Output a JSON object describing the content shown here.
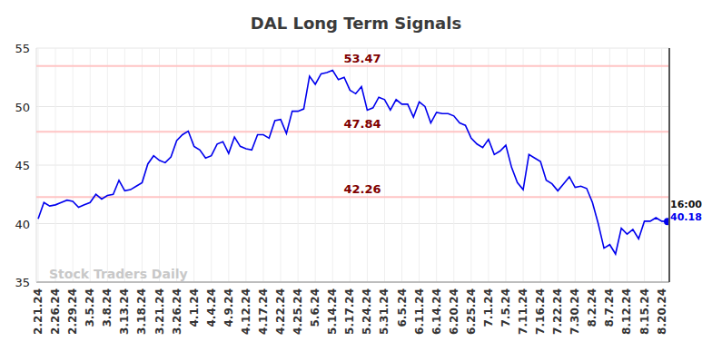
{
  "chart_data": {
    "type": "line",
    "title": "DAL Long Term Signals",
    "categories": [
      "2.21.24",
      null,
      null,
      "2.26.24",
      null,
      null,
      "2.29.24",
      null,
      null,
      "3.5.24",
      null,
      null,
      "3.8.24",
      null,
      null,
      "3.13.24",
      null,
      null,
      "3.18.24",
      null,
      null,
      "3.21.24",
      null,
      null,
      "3.26.24",
      null,
      null,
      "4.1.24",
      null,
      null,
      "4.4.24",
      null,
      null,
      "4.9.24",
      null,
      null,
      "4.12.24",
      null,
      null,
      "4.17.24",
      null,
      null,
      "4.22.24",
      null,
      null,
      "4.25.24",
      null,
      null,
      "5.6.24",
      null,
      null,
      "5.14.24",
      null,
      null,
      "5.17.24",
      null,
      null,
      "5.24.24",
      null,
      null,
      "5.31.24",
      null,
      null,
      "6.5.24",
      null,
      null,
      "6.11.24",
      null,
      null,
      "6.14.24",
      null,
      null,
      "6.20.24",
      null,
      null,
      "6.25.24",
      null,
      null,
      "7.1.24",
      null,
      null,
      "7.5.24",
      null,
      null,
      "7.11.24",
      null,
      null,
      "7.16.24",
      null,
      null,
      "7.22.24",
      null,
      null,
      "7.30.24",
      null,
      null,
      "8.2.24",
      null,
      null,
      "8.7.24",
      null,
      null,
      "8.12.24",
      null,
      null,
      "8.15.24",
      null,
      null,
      "8.20.24",
      null
    ],
    "series": [
      {
        "name": "DAL",
        "color": "#0000ee",
        "values": [
          40.4,
          41.8,
          41.5,
          41.6,
          41.8,
          42.0,
          41.9,
          41.4,
          41.6,
          41.8,
          42.5,
          42.1,
          42.4,
          42.5,
          43.7,
          42.8,
          42.9,
          43.2,
          43.5,
          45.1,
          45.8,
          45.4,
          45.2,
          45.7,
          47.1,
          47.6,
          47.9,
          46.6,
          46.3,
          45.6,
          45.8,
          46.8,
          47.0,
          46.0,
          47.4,
          46.6,
          46.4,
          46.3,
          47.6,
          47.6,
          47.3,
          48.8,
          48.9,
          47.7,
          49.6,
          49.6,
          49.8,
          52.6,
          51.9,
          52.8,
          52.9,
          53.1,
          52.3,
          52.5,
          51.4,
          51.1,
          51.7,
          49.7,
          49.9,
          50.8,
          50.6,
          49.7,
          50.6,
          50.2,
          50.2,
          49.1,
          50.4,
          50.0,
          48.6,
          49.5,
          49.4,
          49.4,
          49.2,
          48.6,
          48.4,
          47.3,
          46.8,
          46.5,
          47.2,
          45.9,
          46.2,
          46.7,
          44.8,
          43.5,
          42.9,
          45.9,
          45.6,
          45.3,
          43.7,
          43.4,
          42.8,
          43.4,
          44.0,
          43.1,
          43.2,
          43.0,
          41.8,
          40.0,
          37.9,
          38.2,
          37.4,
          39.6,
          39.1,
          39.5,
          38.7,
          40.2,
          40.2,
          40.5,
          40.2,
          40.18
        ]
      }
    ],
    "levels": [
      53.47,
      47.84,
      42.26
    ],
    "watermark": "Stock Traders Daily",
    "time_label": "16:00",
    "ylim": [
      35,
      55
    ],
    "yticks": [
      35,
      40,
      45,
      50,
      55
    ],
    "grid": true
  }
}
